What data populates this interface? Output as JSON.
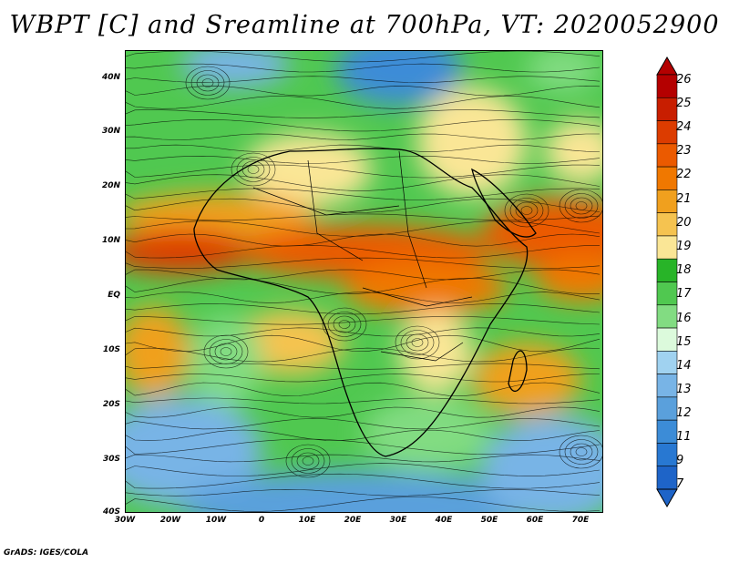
{
  "title": "WBPT [C] and Sreamline at 700hPa, VT: 2020052900",
  "credit": "GrADS: IGES/COLA",
  "map": {
    "lat_labels": [
      "40N",
      "30N",
      "20N",
      "10N",
      "EQ",
      "10S",
      "20S",
      "30S",
      "40S"
    ],
    "lon_labels": [
      "30W",
      "20W",
      "10W",
      "0",
      "10E",
      "20E",
      "30E",
      "40E",
      "50E",
      "60E",
      "70E"
    ],
    "lon_range": [
      -30,
      75
    ],
    "lat_range": [
      -40,
      45
    ]
  },
  "colorbar": {
    "labels": [
      "26",
      "25",
      "24",
      "23",
      "22",
      "21",
      "20",
      "19",
      "18",
      "17",
      "16",
      "15",
      "14",
      "13",
      "12",
      "11",
      "9",
      "7"
    ],
    "colors": [
      "#b40000",
      "#c81e00",
      "#dc3c00",
      "#eb5a00",
      "#f07800",
      "#f0a01e",
      "#f5c350",
      "#fae696",
      "#28b428",
      "#50c850",
      "#82dc82",
      "#dcfadc",
      "#a0d2f0",
      "#78b4e6",
      "#5aa0dc",
      "#3c8cd7",
      "#2878d2",
      "#1e64c8"
    ]
  }
}
